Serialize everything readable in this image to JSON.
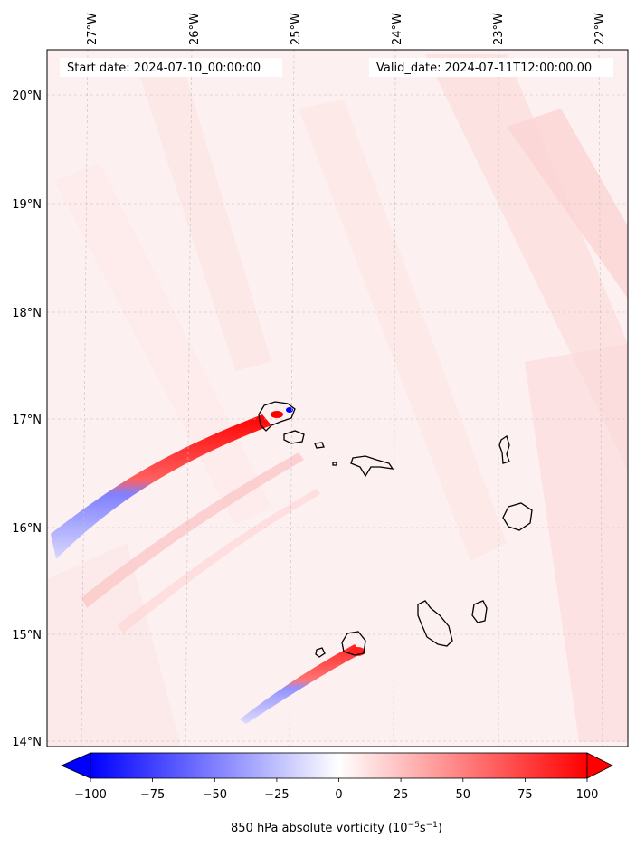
{
  "map": {
    "start_date_label": "Start date: 2024-07-10_00:00:00",
    "valid_date_label": "Valid_date: 2024-07-11T12:00:00.00",
    "lon_labels": [
      "27°W",
      "26°W",
      "25°W",
      "24°W",
      "23°W",
      "22°W"
    ],
    "lat_labels": [
      "20°N",
      "19°N",
      "18°N",
      "17°N",
      "16°N",
      "15°N",
      "14°N"
    ],
    "extent": {
      "lon_min": -27.33,
      "lon_max": -21.74,
      "lat_min": 13.96,
      "lat_max": 20.42
    }
  },
  "colorbar": {
    "title": "850 hPa absolute vorticity",
    "units_prefix": "(10",
    "units_exp1": "−5",
    "units_mid": "s",
    "units_exp2": "−1",
    "units_suffix": ")",
    "min": -100,
    "max": 100,
    "ticks": [
      "−100",
      "−75",
      "−50",
      "−25",
      "0",
      "25",
      "50",
      "75",
      "100"
    ],
    "colors": {
      "negative": "#0000ff",
      "neutral": "#ffffff",
      "positive": "#ff0000"
    }
  }
}
